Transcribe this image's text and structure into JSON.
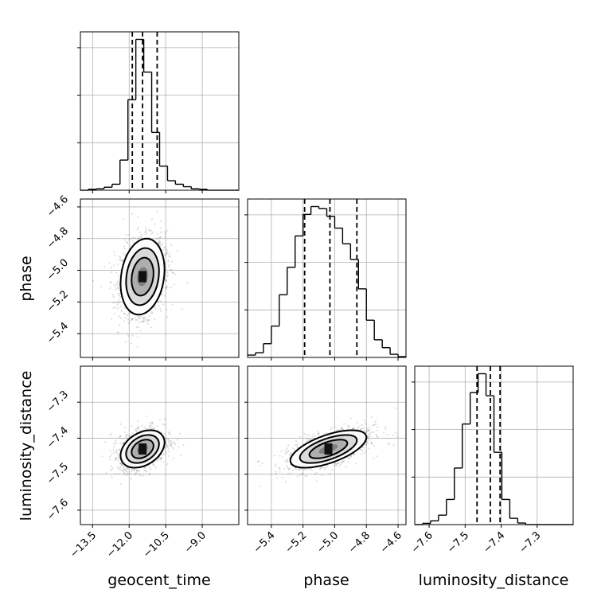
{
  "chart_data": {
    "type": "corner",
    "parameters": [
      "geocent_time",
      "phase",
      "luminosity_distance"
    ],
    "axis_labels": {
      "geocent_time": "geocent_time",
      "phase": "phase",
      "luminosity_distance": "luminosity_distance"
    },
    "ranges": {
      "geocent_time": [
        -14.0,
        -7.5
      ],
      "phase": [
        -5.55,
        -4.55
      ],
      "luminosity_distance": [
        -7.64,
        -7.2
      ]
    },
    "ticks": {
      "geocent_time": [
        -13.5,
        -12.0,
        -10.5,
        -9.0
      ],
      "phase": [
        -5.4,
        -5.2,
        -5.0,
        -4.8,
        -4.6
      ],
      "luminosity_distance": [
        -7.6,
        -7.5,
        -7.4,
        -7.3
      ]
    },
    "tick_labels": {
      "geocent_time": [
        "−13.5",
        "−12.0",
        "−10.5",
        "−9.0"
      ],
      "phase": [
        "−5.4",
        "−5.2",
        "−5.0",
        "−4.8",
        "−4.6"
      ],
      "luminosity_distance": [
        "−7.6",
        "−7.5",
        "−7.4",
        "−7.3"
      ]
    },
    "quantiles": {
      "geocent_time": [
        -11.87,
        -11.45,
        -10.85
      ],
      "phase": [
        -5.19,
        -5.03,
        -4.86
      ],
      "luminosity_distance": [
        -7.467,
        -7.43,
        -7.403
      ]
    },
    "histograms": {
      "geocent_time": {
        "edges": [
          -14.0,
          -13.675,
          -13.35,
          -13.025,
          -12.7,
          -12.375,
          -12.05,
          -11.725,
          -11.4,
          -11.075,
          -10.75,
          -10.425,
          -10.1,
          -9.775,
          -9.45,
          -9.125,
          -8.8,
          -8.475,
          -8.15,
          -7.825,
          -7.5
        ],
        "counts": [
          0,
          2,
          3,
          6,
          12,
          60,
          180,
          300,
          235,
          115,
          48,
          19,
          12,
          7,
          3,
          2,
          0,
          0,
          0,
          0
        ]
      },
      "phase": {
        "edges": [
          -5.55,
          -5.5,
          -5.45,
          -5.4,
          -5.35,
          -5.3,
          -5.25,
          -5.2,
          -5.15,
          -5.1,
          -5.05,
          -5.0,
          -4.95,
          -4.9,
          -4.85,
          -4.8,
          -4.75,
          -4.7,
          -4.65,
          -4.6,
          -4.55
        ],
        "counts": [
          6,
          12,
          35,
          80,
          160,
          230,
          310,
          365,
          385,
          380,
          360,
          330,
          290,
          250,
          175,
          95,
          45,
          25,
          8,
          2
        ]
      },
      "luminosity_distance": {
        "edges": [
          -7.64,
          -7.618,
          -7.596,
          -7.574,
          -7.552,
          -7.53,
          -7.508,
          -7.486,
          -7.464,
          -7.442,
          -7.42,
          -7.398,
          -7.376,
          -7.354,
          -7.332,
          -7.31,
          -7.288,
          -7.266,
          -7.244,
          -7.222,
          -7.2
        ],
        "counts": [
          0,
          4,
          12,
          30,
          80,
          180,
          320,
          420,
          480,
          410,
          230,
          80,
          20,
          5,
          0,
          0,
          0,
          0,
          0,
          0
        ]
      }
    },
    "contour_levels": [
      0.118,
      0.393,
      0.675,
      0.864
    ],
    "grid": true
  }
}
